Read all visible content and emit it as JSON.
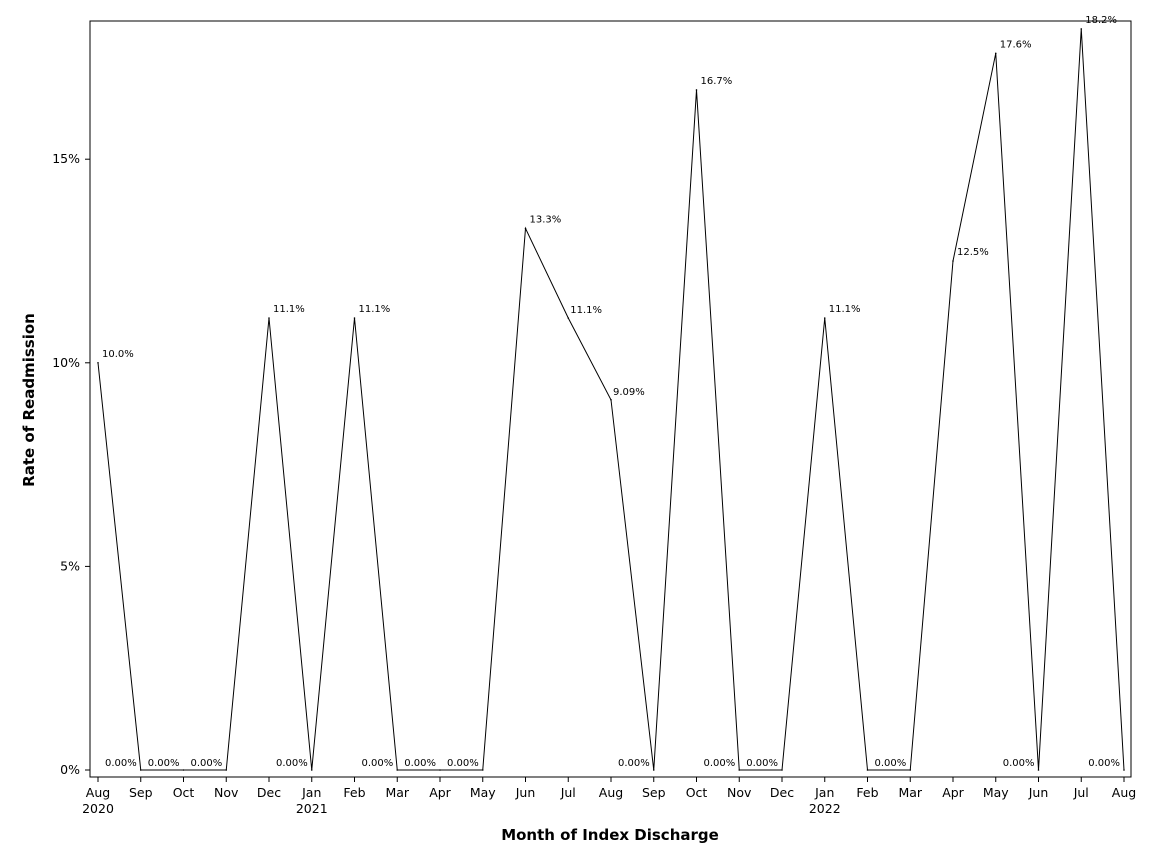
{
  "chart_data": {
    "type": "line",
    "title": "",
    "xlabel": "Month of Index Discharge",
    "ylabel": "Rate of Readmission",
    "y_unit": "percent",
    "ylim": [
      0,
      18.5
    ],
    "yticks": [
      {
        "value": 0,
        "label": "0%"
      },
      {
        "value": 5,
        "label": "5%"
      },
      {
        "value": 10,
        "label": "10%"
      },
      {
        "value": 15,
        "label": "15%"
      }
    ],
    "x_tick_labels": [
      "Aug",
      "Sep",
      "Oct",
      "Nov",
      "Dec",
      "Jan",
      "Feb",
      "Mar",
      "Apr",
      "May",
      "Jun",
      "Jul",
      "Aug",
      "Sep",
      "Oct",
      "Nov",
      "Dec",
      "Jan",
      "Feb",
      "Mar",
      "Apr",
      "May",
      "Jun",
      "Jul",
      "Aug"
    ],
    "x_year_labels": [
      {
        "index": 0,
        "label": "2020"
      },
      {
        "index": 5,
        "label": "2021"
      },
      {
        "index": 17,
        "label": "2022"
      }
    ],
    "grid": false,
    "legend": "none",
    "series": [
      {
        "x": [
          "2020-08",
          "2020-09",
          "2020-10",
          "2020-11",
          "2020-12",
          "2021-01",
          "2021-02",
          "2021-03",
          "2021-04",
          "2021-05",
          "2021-06",
          "2021-07",
          "2021-08",
          "2021-09",
          "2021-10",
          "2021-11",
          "2021-12",
          "2022-01",
          "2022-02",
          "2022-03",
          "2022-04",
          "2022-05",
          "2022-06",
          "2022-07",
          "2022-08"
        ],
        "values": [
          10.0,
          0.0,
          0.0,
          0.0,
          11.1,
          0.0,
          11.1,
          0.0,
          0.0,
          0.0,
          13.3,
          11.1,
          9.09,
          0.0,
          16.7,
          0.0,
          0.0,
          11.1,
          0.0,
          0.0,
          12.5,
          17.6,
          0.0,
          18.2,
          0.0
        ],
        "labels": [
          "10.0%",
          "0.00%",
          "0.00%",
          "0.00%",
          "11.1%",
          "0.00%",
          "11.1%",
          "0.00%",
          "0.00%",
          "0.00%",
          "13.3%",
          "11.1%",
          "9.09%",
          "0.00%",
          "16.7%",
          "0.00%",
          "0.00%",
          "11.1%",
          "",
          "0.00%",
          "12.5%",
          "17.6%",
          "0.00%",
          "18.2%",
          "0.00%"
        ],
        "color": "#000000"
      }
    ]
  }
}
